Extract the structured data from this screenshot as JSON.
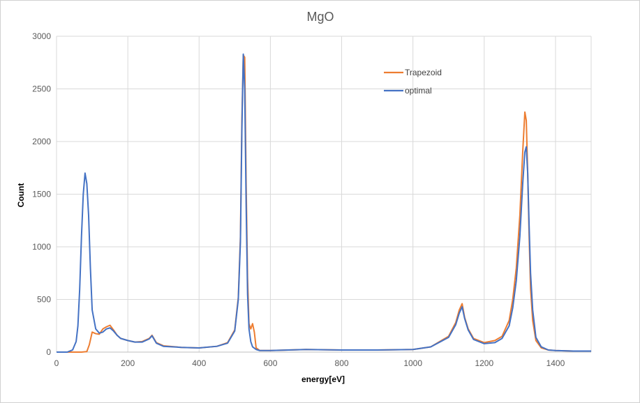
{
  "chart_data": {
    "type": "line",
    "title": "MgO",
    "xlabel": "energy[eV]",
    "ylabel": "Count",
    "xlim": [
      0,
      1500
    ],
    "ylim": [
      0,
      3000
    ],
    "xticks": [
      0,
      200,
      400,
      600,
      800,
      1000,
      1200,
      1400
    ],
    "yticks": [
      0,
      500,
      1000,
      1500,
      2000,
      2500,
      3000
    ],
    "grid": true,
    "legend_position": "top-right",
    "series": [
      {
        "name": "Trapezoid",
        "color": "#ED7D31",
        "x": [
          0,
          40,
          70,
          85,
          92,
          100,
          110,
          120,
          130,
          140,
          150,
          160,
          170,
          180,
          200,
          220,
          240,
          260,
          268,
          280,
          300,
          350,
          400,
          450,
          480,
          500,
          510,
          516,
          520,
          524,
          528,
          532,
          536,
          540,
          545,
          550,
          555,
          560,
          570,
          600,
          700,
          800,
          900,
          1000,
          1050,
          1100,
          1120,
          1130,
          1138,
          1145,
          1155,
          1170,
          1200,
          1230,
          1250,
          1270,
          1280,
          1290,
          1300,
          1308,
          1314,
          1318,
          1322,
          1326,
          1330,
          1336,
          1345,
          1360,
          1380,
          1400,
          1450,
          1500
        ],
        "y": [
          0,
          0,
          0,
          5,
          70,
          190,
          175,
          170,
          220,
          240,
          255,
          210,
          160,
          130,
          110,
          95,
          100,
          130,
          160,
          90,
          60,
          45,
          40,
          55,
          90,
          210,
          520,
          1100,
          2200,
          2820,
          2800,
          1600,
          700,
          270,
          220,
          270,
          190,
          40,
          15,
          15,
          25,
          20,
          20,
          25,
          50,
          150,
          280,
          400,
          460,
          330,
          220,
          130,
          90,
          110,
          150,
          300,
          500,
          800,
          1300,
          1900,
          2280,
          2200,
          1700,
          1100,
          600,
          300,
          110,
          40,
          20,
          15,
          10,
          10
        ]
      },
      {
        "name": "optimal",
        "color": "#4472C4",
        "x": [
          0,
          30,
          45,
          55,
          60,
          65,
          70,
          75,
          80,
          85,
          90,
          95,
          100,
          110,
          120,
          130,
          140,
          150,
          160,
          170,
          180,
          200,
          220,
          240,
          260,
          268,
          280,
          300,
          350,
          400,
          450,
          480,
          500,
          510,
          516,
          520,
          524,
          528,
          532,
          536,
          540,
          545,
          550,
          560,
          570,
          600,
          700,
          800,
          900,
          1000,
          1050,
          1100,
          1120,
          1130,
          1138,
          1145,
          1155,
          1170,
          1200,
          1230,
          1250,
          1270,
          1280,
          1290,
          1300,
          1308,
          1314,
          1318,
          1322,
          1326,
          1330,
          1336,
          1345,
          1360,
          1380,
          1400,
          1450,
          1500
        ],
        "y": [
          0,
          0,
          20,
          100,
          250,
          600,
          1100,
          1500,
          1700,
          1600,
          1300,
          800,
          400,
          220,
          180,
          190,
          220,
          230,
          200,
          160,
          130,
          110,
          95,
          95,
          125,
          155,
          85,
          55,
          45,
          40,
          55,
          85,
          200,
          500,
          1050,
          2100,
          2830,
          2500,
          1400,
          550,
          220,
          100,
          50,
          25,
          15,
          15,
          25,
          20,
          20,
          25,
          50,
          140,
          260,
          370,
          430,
          320,
          210,
          120,
          80,
          90,
          130,
          250,
          420,
          680,
          1100,
          1600,
          1900,
          1950,
          1700,
          1200,
          750,
          400,
          140,
          50,
          20,
          15,
          10,
          10
        ]
      }
    ]
  }
}
